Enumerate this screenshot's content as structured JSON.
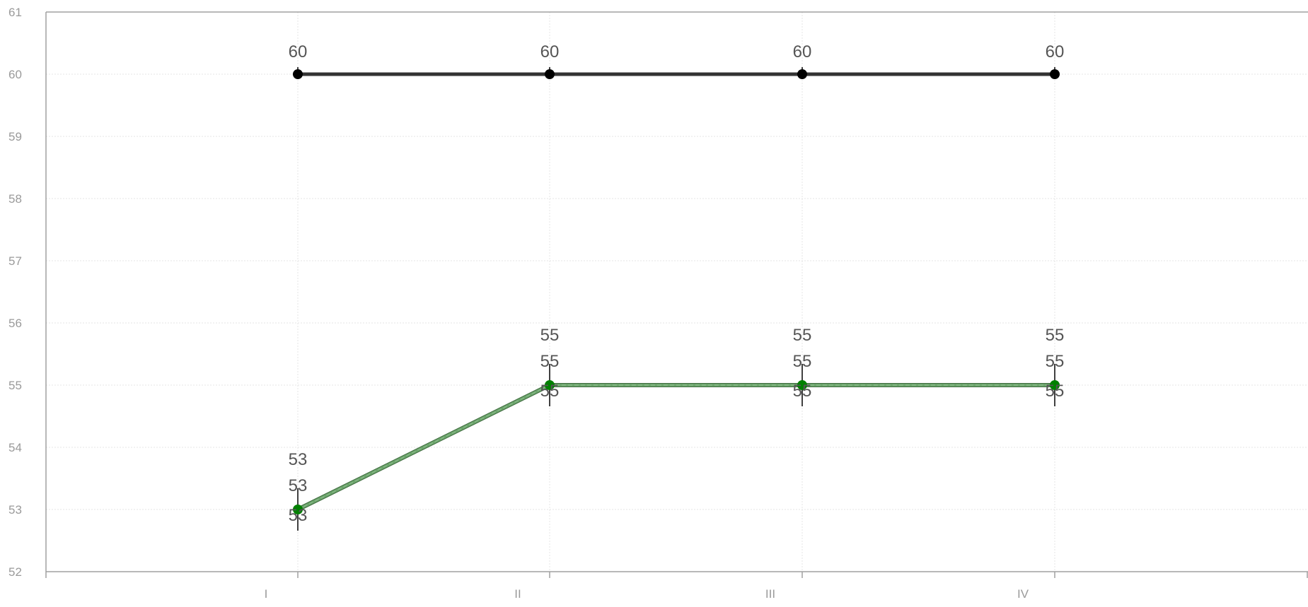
{
  "chart_data": {
    "type": "line",
    "categories": [
      "I",
      "II",
      "III",
      "IV"
    ],
    "ylim": [
      52,
      61
    ],
    "yticks": [
      52,
      53,
      54,
      55,
      56,
      57,
      58,
      59,
      60,
      61
    ],
    "grid": true,
    "series": [
      {
        "values": [
          60,
          60,
          60,
          60
        ],
        "color": "#333333",
        "marker_color": "#000000"
      },
      {
        "values": [
          53,
          55,
          55,
          55
        ],
        "color": "#6aa36a",
        "marker_color": "#008000"
      }
    ],
    "series_2_extra_labels": [
      53,
      55,
      55,
      55
    ]
  }
}
